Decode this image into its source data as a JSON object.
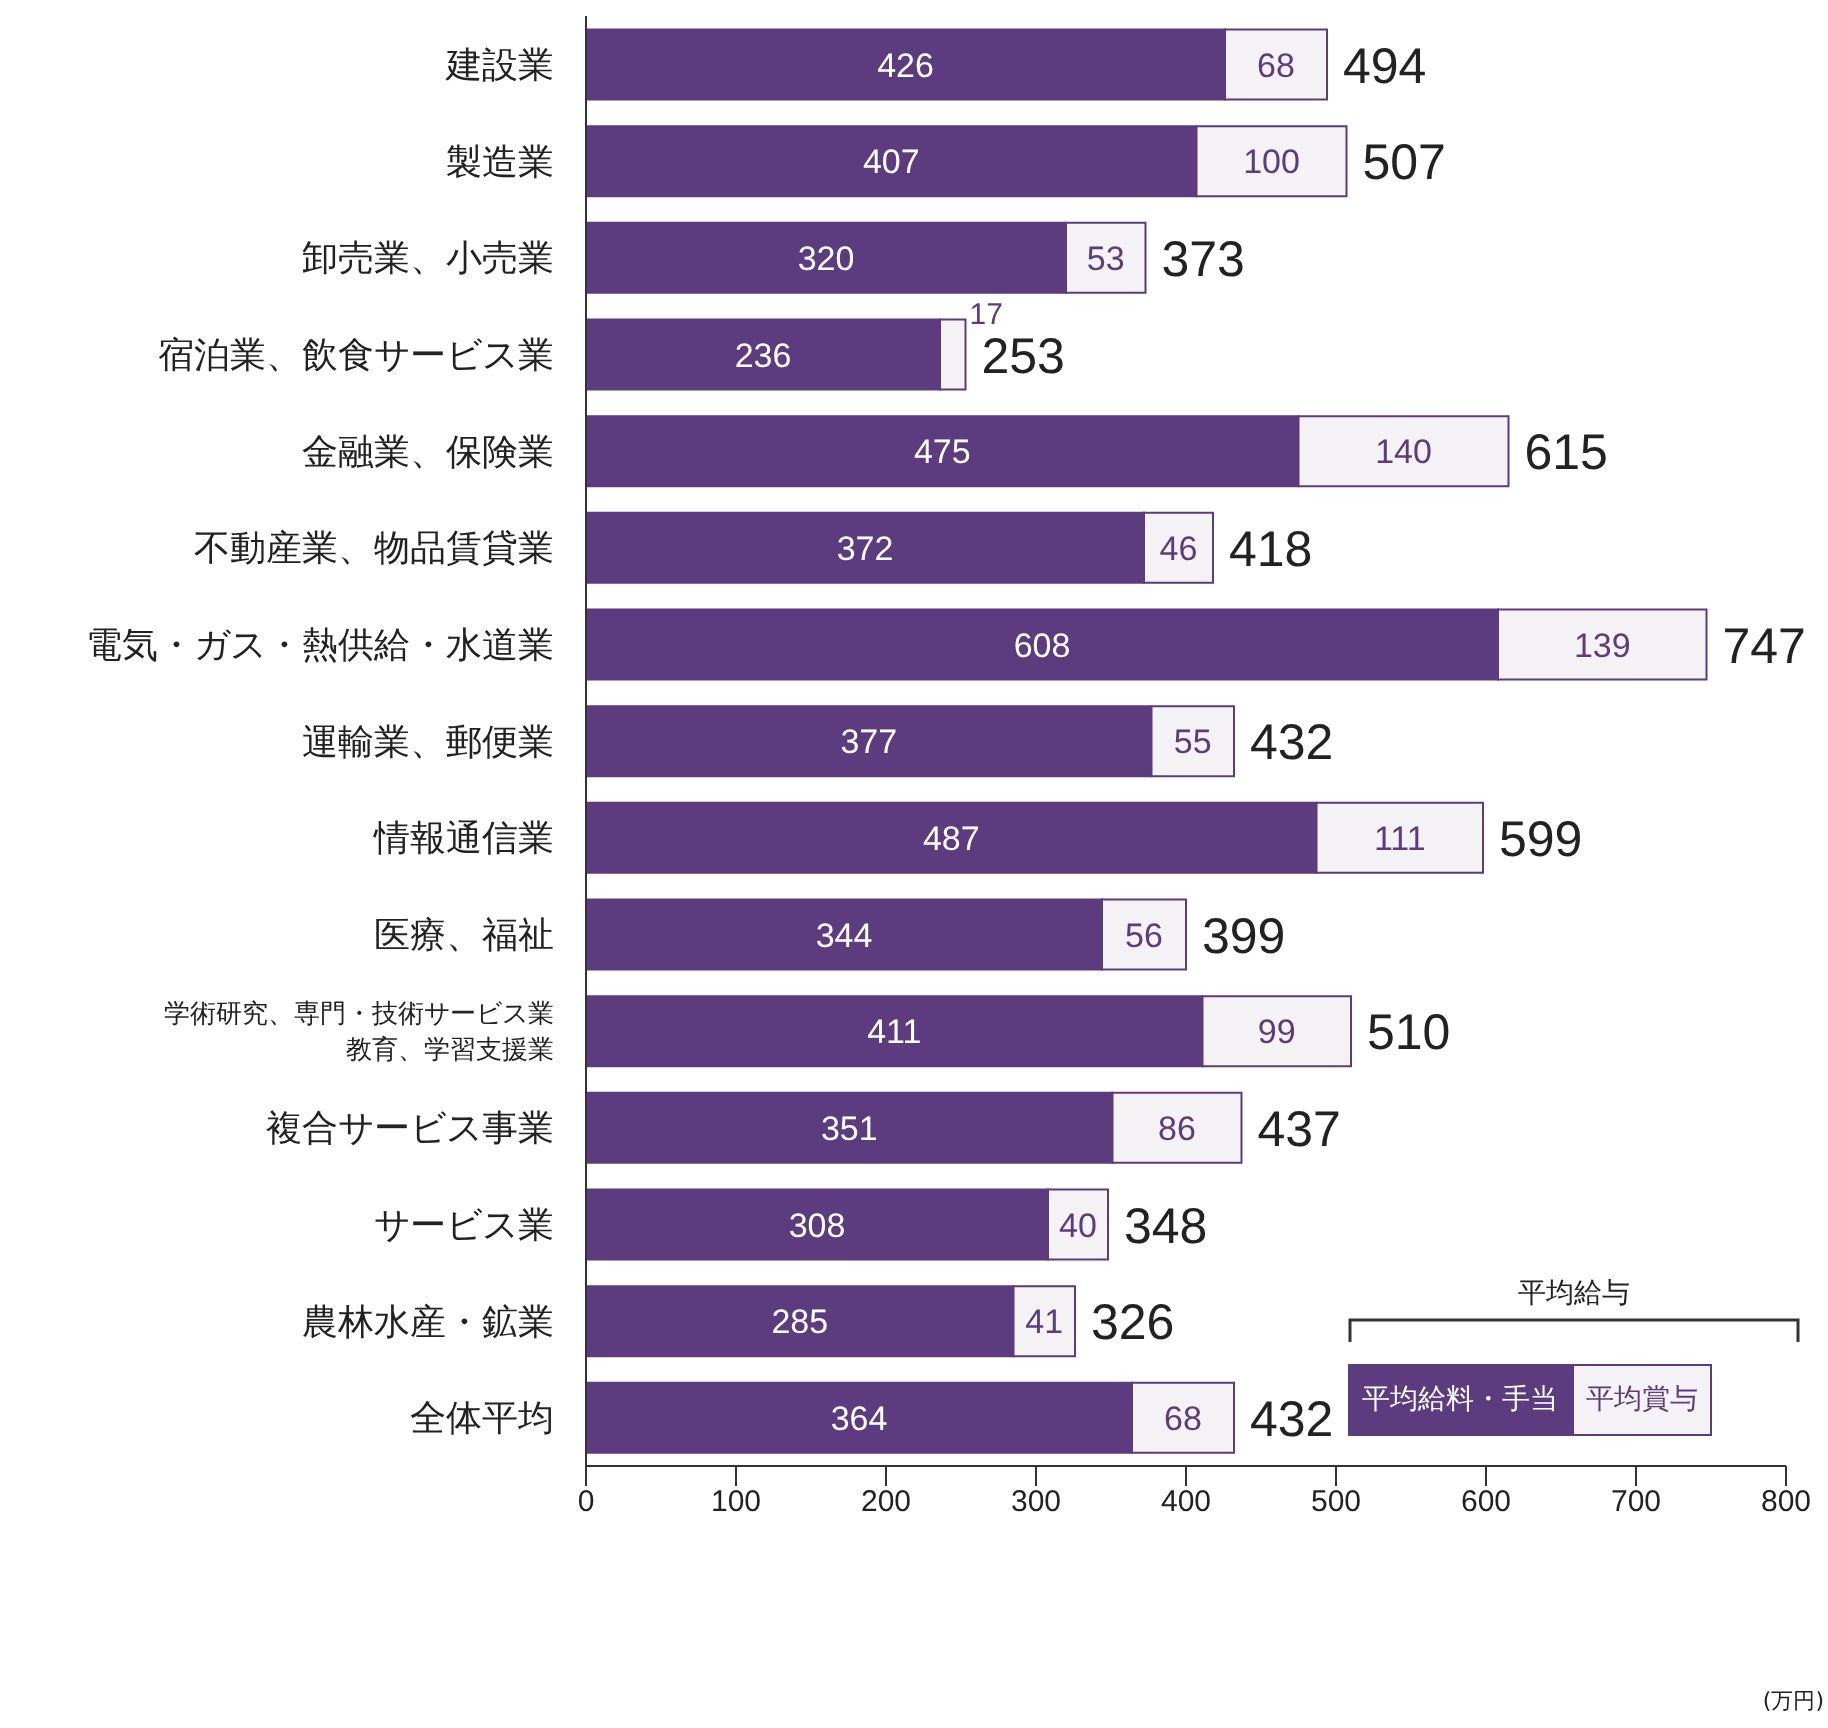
{
  "chart_data": {
    "type": "bar",
    "orientation": "horizontal",
    "stacked": true,
    "data_labels": true,
    "categories": [
      "建設業",
      "製造業",
      "卸売業、小売業",
      "宿泊業、飲食サービス業",
      "金融業、保険業",
      "不動産業、物品賃貸業",
      "電気・ガス・熱供給・水道業",
      "運輸業、郵便業",
      "情報通信業",
      "医療、福祉",
      "学術研究、専門・技術サービス業教育、学習支援業",
      "複合サービス事業",
      "サービス業",
      "農林水産・鉱業",
      "全体平均"
    ],
    "series": [
      {
        "name": "平均給料・手当",
        "color": "#5c3b7e",
        "values": [
          426,
          407,
          320,
          236,
          475,
          372,
          608,
          377,
          487,
          344,
          411,
          351,
          308,
          285,
          364
        ]
      },
      {
        "name": "平均賞与",
        "color": "#f4f2f5",
        "values": [
          68,
          100,
          53,
          17,
          140,
          46,
          139,
          55,
          111,
          56,
          99,
          86,
          40,
          41,
          68
        ]
      }
    ],
    "totals": [
      "494",
      "507",
      "373",
      "253",
      "615",
      "418",
      "747",
      "432",
      "599",
      "399",
      "510",
      "437",
      "348",
      "326",
      "432"
    ],
    "xlim": [
      0,
      800
    ],
    "xticks": [
      0,
      100,
      200,
      300,
      400,
      500,
      600,
      700,
      800
    ],
    "legend_title": "平均給与",
    "legend": "bottom right",
    "grid": false,
    "annotations": [
      "(万円)"
    ]
  }
}
